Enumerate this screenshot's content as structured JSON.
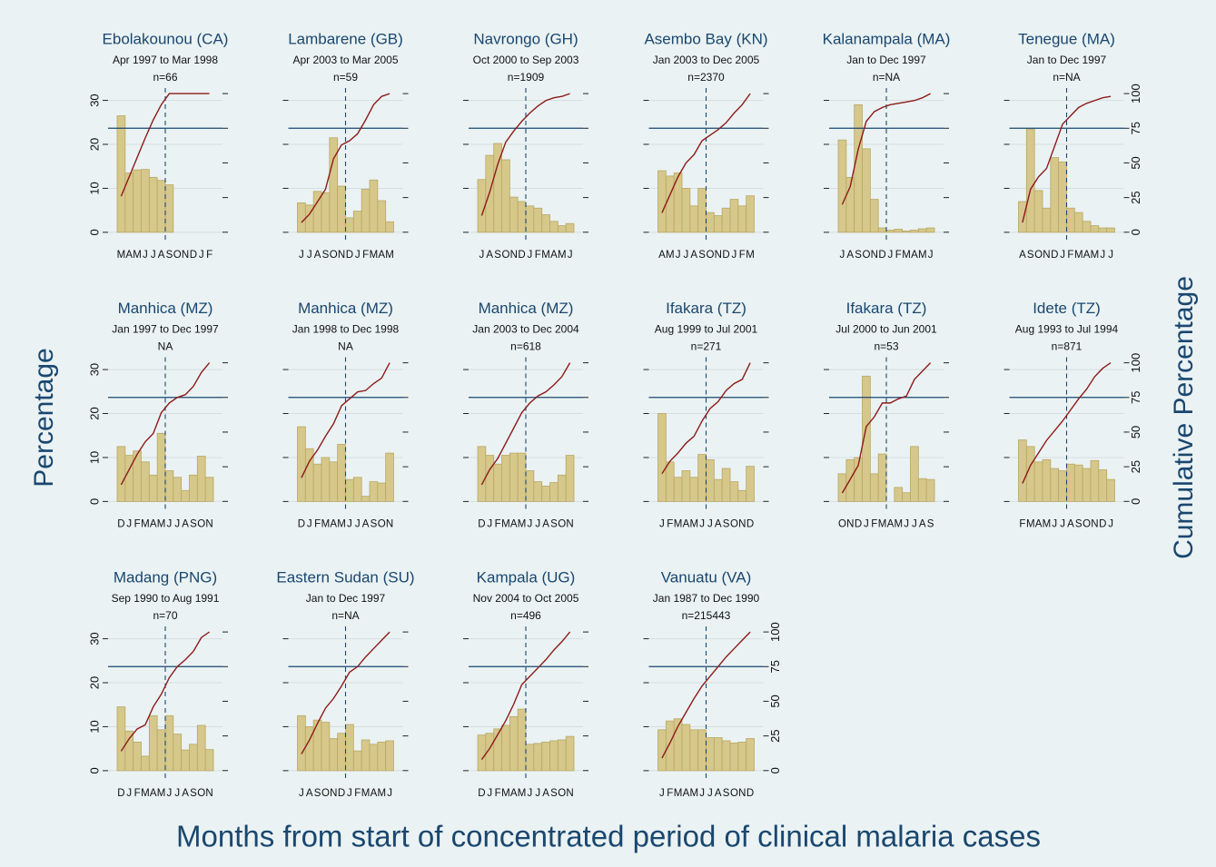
{
  "chart_data": {
    "type": "small_multiples",
    "xlabel": "Months from start of concentrated period of clinical malaria cases",
    "ylabel": "Percentage",
    "y2label": "Cumulative Percentage",
    "ylim": [
      -2.5,
      32.8
    ],
    "yticks": [
      0,
      10,
      20,
      30
    ],
    "y2lim": [
      -8,
      104
    ],
    "y2ticks": [
      0,
      25,
      50,
      75,
      100
    ],
    "hline": 75,
    "grid": true,
    "bar_color": "#d6c78a",
    "line_color": "#8c1b1b",
    "panels": [
      {
        "title": "Ebolakounou (CA)",
        "subtitle": "Apr 1997 to Mar 1998",
        "note": "n=66",
        "categories": [
          "M",
          "A",
          "M",
          "J",
          "J",
          "A",
          "S",
          "O",
          "N",
          "D",
          "J",
          "F"
        ],
        "values": [
          26.5,
          13.5,
          14.2,
          14.3,
          12.5,
          11.8,
          10.8,
          null,
          null,
          null,
          null,
          null
        ],
        "cumulative": [
          26,
          40,
          54,
          68,
          81,
          92,
          100,
          100,
          100,
          100,
          100,
          100
        ]
      },
      {
        "title": "Lambarene (GB)",
        "subtitle": "Apr 2003 to Mar 2005",
        "note": "n=59",
        "categories": [
          "J",
          "J",
          "A",
          "S",
          "O",
          "N",
          "D",
          "J",
          "F",
          "M",
          "A",
          "M"
        ],
        "values": [
          6.7,
          6.2,
          9.3,
          9,
          21.5,
          10.5,
          3.3,
          4.8,
          9.8,
          11.9,
          7.2,
          2.4
        ],
        "cumulative": [
          7,
          13,
          22,
          31,
          53,
          63,
          66,
          71,
          81,
          92,
          98,
          100
        ]
      },
      {
        "title": "Navrongo (GH)",
        "subtitle": "Oct 2000 to Sep 2003",
        "note": "n=1909",
        "categories": [
          "J",
          "A",
          "S",
          "O",
          "N",
          "D",
          "J",
          "F",
          "M",
          "A",
          "M",
          "J"
        ],
        "values": [
          12,
          17.5,
          20.2,
          16.5,
          8,
          7,
          6,
          5.5,
          4,
          2.5,
          1.5,
          2
        ],
        "cumulative": [
          12,
          29,
          49,
          65,
          73,
          80,
          86,
          91,
          95,
          97,
          98,
          100
        ]
      },
      {
        "title": "Asembo Bay (KN)",
        "subtitle": "Jan 2003 to Dec 2005",
        "note": "n=2370",
        "categories": [
          "A",
          "M",
          "J",
          "J",
          "A",
          "S",
          "O",
          "N",
          "D",
          "J",
          "F",
          "M"
        ],
        "values": [
          14,
          12.8,
          13.5,
          10,
          6,
          10,
          4.5,
          3.8,
          5.5,
          7.5,
          6,
          8.3
        ],
        "cumulative": [
          14,
          27,
          40,
          50,
          56,
          66,
          70,
          74,
          79,
          86,
          92,
          100
        ]
      },
      {
        "title": "Kalanampala (MA)",
        "subtitle": "Jan to Dec 1997",
        "note": "n=NA",
        "categories": [
          "J",
          "A",
          "S",
          "O",
          "N",
          "D",
          "J",
          "F",
          "M",
          "A",
          "M",
          "J"
        ],
        "values": [
          21,
          12.5,
          29,
          19,
          7.5,
          1,
          0.5,
          0.7,
          0.3,
          0.5,
          0.8,
          1
        ],
        "cumulative": [
          20,
          33,
          60,
          80,
          87,
          90,
          92,
          93,
          94,
          95,
          97,
          100
        ]
      },
      {
        "title": "Tenegue (MA)",
        "subtitle": "Jan to Dec 1997",
        "note": "n=NA",
        "categories": [
          "A",
          "S",
          "O",
          "N",
          "D",
          "J",
          "F",
          "M",
          "A",
          "M",
          "J",
          "J"
        ],
        "values": [
          7,
          23.5,
          9.5,
          5.5,
          17,
          16,
          5.5,
          4.5,
          2.5,
          1.5,
          1,
          1
        ],
        "cumulative": [
          7,
          31,
          40,
          46,
          62,
          78,
          84,
          90,
          93,
          95,
          97,
          98
        ]
      },
      {
        "title": "Manhica (MZ)",
        "subtitle": "Jan 1997 to Dec 1997",
        "note": "NA",
        "categories": [
          "D",
          "J",
          "F",
          "M",
          "A",
          "M",
          "J",
          "J",
          "A",
          "S",
          "O",
          "N"
        ],
        "values": [
          12.5,
          10.5,
          11.5,
          9,
          6,
          15.5,
          7,
          5.5,
          2.5,
          6,
          10.3,
          5.5
        ],
        "cumulative": [
          12,
          23,
          34,
          43,
          49,
          64,
          71,
          75,
          77,
          83,
          93,
          100
        ]
      },
      {
        "title": "Manhica (MZ)",
        "subtitle": "Jan 1998 to Dec 1998",
        "note": "NA",
        "categories": [
          "D",
          "J",
          "F",
          "M",
          "A",
          "M",
          "J",
          "J",
          "A",
          "S",
          "O",
          "N"
        ],
        "values": [
          17,
          12,
          8.5,
          10,
          9,
          13,
          5,
          5.5,
          1.2,
          4.5,
          4.2,
          11
        ],
        "cumulative": [
          17,
          29,
          37,
          47,
          56,
          69,
          74,
          79,
          80,
          85,
          89,
          100
        ]
      },
      {
        "title": "Manhica (MZ)",
        "subtitle": "Jan 2003 to Dec 2004",
        "note": "n=618",
        "categories": [
          "D",
          "J",
          "F",
          "M",
          "A",
          "M",
          "J",
          "J",
          "A",
          "S",
          "O",
          "N"
        ],
        "values": [
          12.5,
          10.5,
          8.5,
          10.5,
          11,
          11,
          7,
          4.5,
          3.5,
          4.3,
          6,
          10.5
        ],
        "cumulative": [
          12,
          23,
          31,
          42,
          53,
          64,
          71,
          76,
          79,
          84,
          90,
          100
        ]
      },
      {
        "title": "Ifakara (TZ)",
        "subtitle": "Aug 1999 to Jul 2001",
        "note": "n=271",
        "categories": [
          "J",
          "F",
          "M",
          "A",
          "M",
          "J",
          "J",
          "A",
          "S",
          "O",
          "N",
          "D"
        ],
        "values": [
          20,
          9,
          5.5,
          7,
          5.5,
          10.7,
          9.5,
          5,
          7.5,
          4.5,
          2.5,
          8
        ],
        "cumulative": [
          20,
          29,
          35,
          42,
          47,
          58,
          67,
          72,
          80,
          85,
          88,
          100
        ]
      },
      {
        "title": "Ifakara (TZ)",
        "subtitle": "Jul 2000 to Jun 2001",
        "note": "n=53",
        "categories": [
          "O",
          "N",
          "D",
          "J",
          "F",
          "M",
          "A",
          "M",
          "J",
          "J",
          "A",
          "S"
        ],
        "values": [
          6.3,
          9.5,
          10,
          28.5,
          6.3,
          10.8,
          0,
          3.2,
          2,
          12.5,
          5.2,
          5
        ],
        "cumulative": [
          6,
          16,
          26,
          54,
          61,
          71,
          71,
          74,
          76,
          88,
          94,
          100
        ]
      },
      {
        "title": "Idete (TZ)",
        "subtitle": "Aug 1993 to Jul 1994",
        "note": "n=871",
        "categories": [
          "F",
          "M",
          "A",
          "M",
          "J",
          "J",
          "A",
          "S",
          "O",
          "N",
          "D",
          "J"
        ],
        "values": [
          14,
          12.5,
          9,
          9.5,
          7.5,
          7,
          8.5,
          8.3,
          7.5,
          9.3,
          7.2,
          5
        ],
        "cumulative": [
          13,
          26,
          35,
          44,
          51,
          58,
          66,
          74,
          81,
          90,
          96,
          100
        ]
      },
      {
        "title": "Madang (PNG)",
        "subtitle": "Sep 1990 to Aug 1991",
        "note": "n=70",
        "categories": [
          "D",
          "J",
          "F",
          "M",
          "A",
          "M",
          "J",
          "J",
          "A",
          "S",
          "O",
          "N"
        ],
        "values": [
          14.5,
          9,
          6.5,
          3.3,
          12.5,
          9.3,
          12.5,
          8.3,
          4.7,
          6,
          10.3,
          4.8
        ],
        "cumulative": [
          14,
          23,
          30,
          33,
          46,
          55,
          67,
          75,
          80,
          86,
          96,
          100
        ]
      },
      {
        "title": "Eastern Sudan (SU)",
        "subtitle": "Jan to Dec 1997",
        "note": "n=NA",
        "categories": [
          "J",
          "A",
          "S",
          "O",
          "N",
          "D",
          "J",
          "F",
          "M",
          "A",
          "M",
          "J"
        ],
        "values": [
          12.5,
          10,
          11.5,
          11,
          7.3,
          8.5,
          10.5,
          4.5,
          7,
          6,
          6.5,
          6.8
        ],
        "cumulative": [
          12,
          22,
          34,
          45,
          52,
          61,
          71,
          75,
          82,
          88,
          94,
          100
        ]
      },
      {
        "title": "Kampala (UG)",
        "subtitle": "Nov 2004 to Oct 2005",
        "note": "n=496",
        "categories": [
          "D",
          "J",
          "F",
          "M",
          "A",
          "M",
          "J",
          "J",
          "A",
          "S",
          "O",
          "N"
        ],
        "values": [
          8.1,
          8.5,
          9.5,
          10.3,
          12.3,
          14,
          6,
          6.2,
          6.5,
          6.8,
          7,
          7.8
        ],
        "cumulative": [
          8,
          16,
          26,
          36,
          48,
          62,
          68,
          74,
          80,
          87,
          93,
          100
        ]
      },
      {
        "title": "Vanuatu (VA)",
        "subtitle": "Jan 1987 to Dec 1990",
        "note": "n=215443",
        "categories": [
          "J",
          "F",
          "M",
          "A",
          "M",
          "J",
          "J",
          "A",
          "S",
          "O",
          "N",
          "D"
        ],
        "values": [
          9.3,
          11.3,
          11.8,
          10.5,
          9.3,
          9.3,
          7.5,
          7.5,
          6.8,
          6.3,
          6.5,
          7.3
        ],
        "cumulative": [
          9,
          20,
          32,
          42,
          52,
          61,
          68,
          75,
          82,
          88,
          94,
          100
        ]
      }
    ]
  }
}
